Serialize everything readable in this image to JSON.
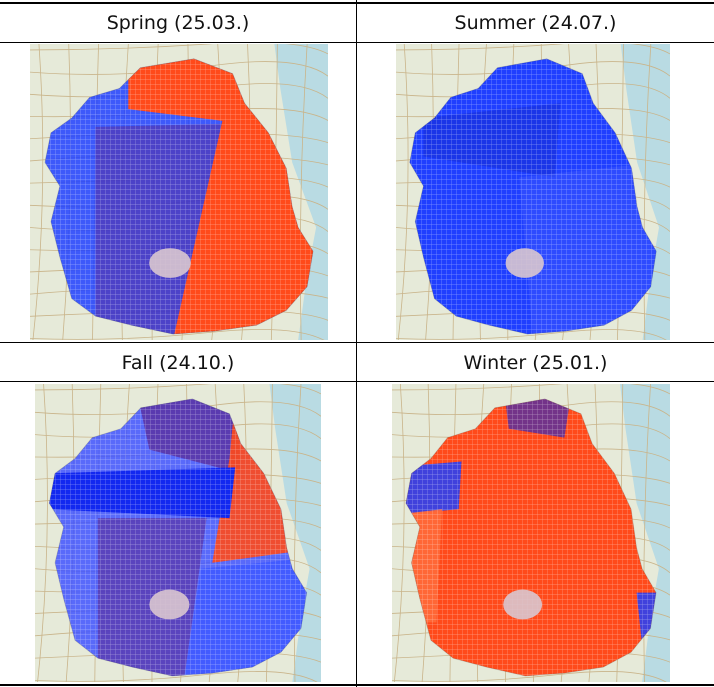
{
  "panels": [
    {
      "title": "Spring (25.03.)",
      "dominant": "red-right"
    },
    {
      "title": "Summer (24.07.)",
      "dominant": "blue"
    },
    {
      "title": "Fall (24.10.)",
      "dominant": "mixed"
    },
    {
      "title": "Winter (25.01.)",
      "dominant": "red"
    }
  ],
  "colors": {
    "blue": "#1f3fff",
    "red": "#ff4a1a",
    "purple": "#5a2f9e",
    "basemap_land": "#e6ead9",
    "basemap_sea": "#b9dbe3",
    "urban": "#d9c7cf"
  }
}
